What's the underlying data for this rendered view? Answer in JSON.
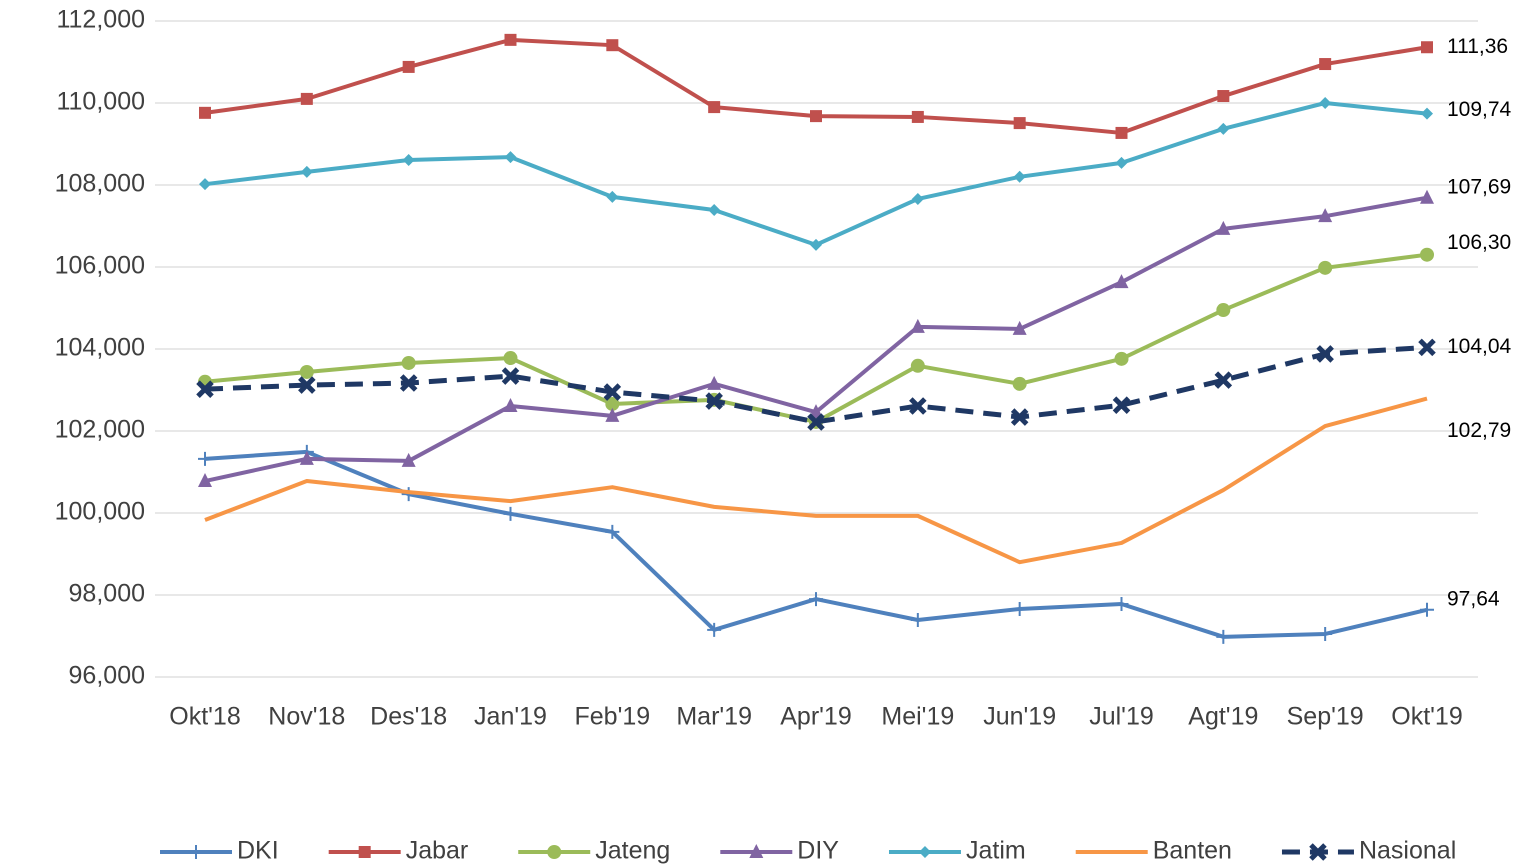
{
  "chart_data": {
    "type": "line",
    "categories": [
      "Okt'18",
      "Nov'18",
      "Des'18",
      "Jan'19",
      "Feb'19",
      "Mar'19",
      "Apr'19",
      "Mei'19",
      "Jun'19",
      "Jul'19",
      "Agt'19",
      "Sep'19",
      "Okt'19"
    ],
    "ylim": [
      96,
      112
    ],
    "yticks": [
      {
        "value": 96,
        "label": "96,000"
      },
      {
        "value": 98,
        "label": "98,000"
      },
      {
        "value": 100,
        "label": "100,000"
      },
      {
        "value": 102,
        "label": "102,000"
      },
      {
        "value": 104,
        "label": "104,000"
      },
      {
        "value": 106,
        "label": "106,000"
      },
      {
        "value": 108,
        "label": "108,000"
      },
      {
        "value": 110,
        "label": "110,000"
      },
      {
        "value": 112,
        "label": "112,000"
      }
    ],
    "grid": true,
    "legend": "bottom",
    "series": [
      {
        "name": "DKI",
        "color": "#4f81bd",
        "marker": "plus",
        "dashed": false,
        "values": [
          101.32,
          101.49,
          100.46,
          99.98,
          99.54,
          97.15,
          97.9,
          97.39,
          97.66,
          97.78,
          96.98,
          97.05,
          97.64
        ],
        "value_labels": [
          null,
          null,
          null,
          null,
          null,
          null,
          null,
          null,
          null,
          null,
          null,
          null,
          "97,64"
        ]
      },
      {
        "name": "Jabar",
        "color": "#c0504d",
        "marker": "square",
        "dashed": false,
        "values": [
          109.76,
          110.1,
          110.88,
          111.54,
          111.41,
          109.9,
          109.68,
          109.66,
          109.51,
          109.27,
          110.17,
          110.95,
          111.36
        ],
        "value_labels": [
          null,
          null,
          null,
          null,
          null,
          null,
          null,
          null,
          null,
          null,
          null,
          null,
          "111,36"
        ]
      },
      {
        "name": "Jateng",
        "color": "#9bbb59",
        "marker": "circle",
        "dashed": false,
        "values": [
          103.2,
          103.44,
          103.66,
          103.78,
          102.66,
          102.76,
          102.22,
          103.59,
          103.15,
          103.76,
          104.95,
          105.98,
          106.3
        ],
        "value_labels": [
          null,
          null,
          null,
          null,
          null,
          null,
          null,
          null,
          null,
          null,
          null,
          null,
          "106,30"
        ]
      },
      {
        "name": "DIY",
        "color": "#8064a2",
        "marker": "triangle",
        "dashed": false,
        "values": [
          100.78,
          101.32,
          101.27,
          102.61,
          102.37,
          103.15,
          102.46,
          104.54,
          104.49,
          105.63,
          106.93,
          107.24,
          107.69
        ],
        "value_labels": [
          null,
          null,
          null,
          null,
          null,
          null,
          null,
          null,
          null,
          null,
          null,
          null,
          "107,69"
        ]
      },
      {
        "name": "Jatim",
        "color": "#4bacc6",
        "marker": "diamond",
        "dashed": false,
        "values": [
          108.02,
          108.32,
          108.61,
          108.68,
          107.71,
          107.39,
          106.54,
          107.66,
          108.2,
          108.54,
          109.37,
          110.0,
          109.74
        ],
        "value_labels": [
          null,
          null,
          null,
          null,
          null,
          null,
          null,
          null,
          null,
          null,
          null,
          null,
          "109,74"
        ]
      },
      {
        "name": "Banten",
        "color": "#f79646",
        "marker": "none",
        "dashed": false,
        "values": [
          99.83,
          100.78,
          100.51,
          100.29,
          100.63,
          100.15,
          99.93,
          99.93,
          98.8,
          99.27,
          100.56,
          102.12,
          102.79
        ],
        "value_labels": [
          null,
          null,
          null,
          null,
          null,
          null,
          null,
          null,
          null,
          null,
          null,
          null,
          "102,79"
        ]
      },
      {
        "name": "Nasional",
        "color": "#1f3864",
        "marker": "x",
        "dashed": true,
        "values": [
          103.02,
          103.12,
          103.17,
          103.34,
          102.95,
          102.73,
          102.22,
          102.61,
          102.34,
          102.63,
          103.24,
          103.88,
          104.04
        ],
        "value_labels": [
          null,
          null,
          null,
          null,
          null,
          null,
          null,
          null,
          null,
          null,
          null,
          null,
          "104,04"
        ]
      }
    ]
  }
}
